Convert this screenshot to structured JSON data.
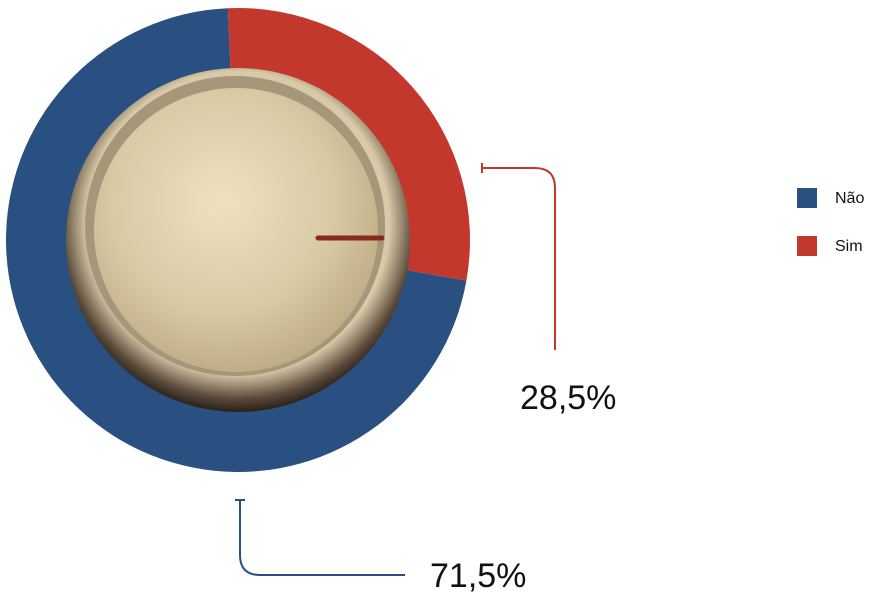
{
  "chart_data": {
    "type": "pie",
    "categories": [
      "Não",
      "Sim"
    ],
    "values": [
      71.5,
      28.5
    ],
    "value_labels": [
      "71,5%",
      "28,5%"
    ],
    "colors": [
      "#2a5081",
      "#c3382d"
    ]
  }
}
